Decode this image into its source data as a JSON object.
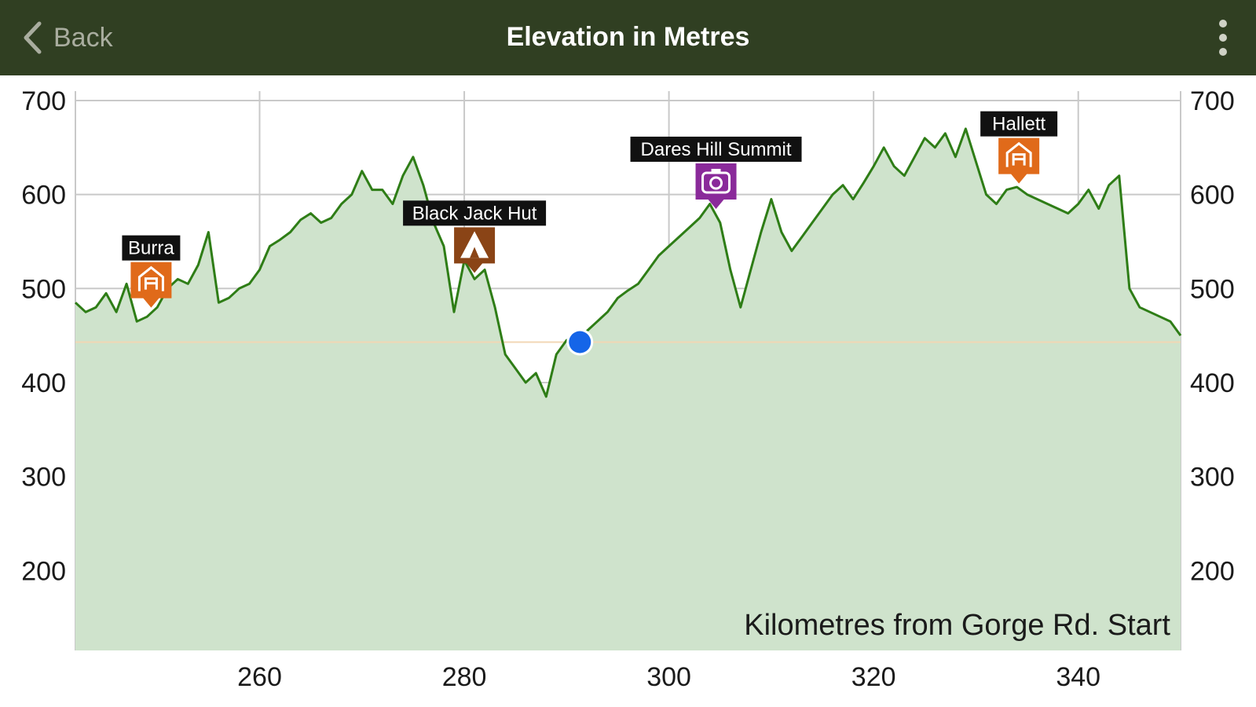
{
  "nav": {
    "back_label": "Back",
    "title": "Elevation in Metres",
    "menu_icon": "more-vertical-icon",
    "back_icon": "chevron-left-icon"
  },
  "colors": {
    "nav_bg": "#303f22",
    "line": "#2e7d16",
    "fill": "#cfe3cc",
    "grid": "#c9c9c9",
    "marker": "#1565e8",
    "town": "#e06a1a",
    "hut": "#8a4416",
    "viewpoint": "#8a2a9a",
    "label_bg": "#111111"
  },
  "chart_data": {
    "type": "area",
    "xlabel": "Kilometres from Gorge Rd. Start",
    "ylabel": "",
    "xlim": [
      242,
      350
    ],
    "ylim": [
      115,
      710
    ],
    "x_ticks": [
      260,
      280,
      300,
      320,
      340
    ],
    "y_ticks": [
      200,
      300,
      400,
      500,
      600,
      700
    ],
    "grid": true,
    "secondary_y_axis": true,
    "reference_line_y": 443,
    "current_position": {
      "x": 291.3,
      "y": 443
    },
    "series": [
      {
        "values_x": [
          242,
          243,
          244,
          245,
          246,
          247,
          248,
          249,
          250,
          251,
          252,
          253,
          254,
          255,
          256,
          257,
          258,
          259,
          260,
          261,
          262,
          263,
          264,
          265,
          266,
          267,
          268,
          269,
          270,
          271,
          272,
          273,
          274,
          275,
          276,
          277,
          278,
          279,
          280,
          281,
          282,
          283,
          284,
          285,
          286,
          287,
          288,
          289,
          290,
          291,
          292,
          293,
          294,
          295,
          296,
          297,
          298,
          299,
          300,
          301,
          302,
          303,
          304,
          305,
          306,
          307,
          308,
          309,
          310,
          311,
          312,
          313,
          314,
          315,
          316,
          317,
          318,
          319,
          320,
          321,
          322,
          323,
          324,
          325,
          326,
          327,
          328,
          329,
          330,
          331,
          332,
          333,
          334,
          335,
          336,
          337,
          338,
          339,
          340,
          341,
          342,
          343,
          344,
          345,
          346,
          347,
          348,
          349,
          350
        ],
        "values": [
          485,
          475,
          480,
          495,
          475,
          505,
          465,
          470,
          480,
          500,
          510,
          505,
          525,
          560,
          485,
          490,
          500,
          505,
          520,
          545,
          552,
          560,
          573,
          580,
          570,
          575,
          590,
          600,
          625,
          605,
          605,
          590,
          620,
          640,
          610,
          570,
          545,
          475,
          530,
          510,
          520,
          480,
          430,
          415,
          400,
          410,
          385,
          430,
          445,
          440,
          455,
          465,
          475,
          490,
          498,
          505,
          520,
          535,
          545,
          555,
          565,
          575,
          590,
          570,
          520,
          480,
          520,
          560,
          595,
          560,
          540,
          555,
          570,
          585,
          600,
          610,
          595,
          612,
          630,
          650,
          630,
          620,
          640,
          660,
          650,
          665,
          640,
          670,
          635,
          600,
          590,
          605,
          608,
          600,
          595,
          590,
          585,
          580,
          590,
          605,
          585,
          610,
          620,
          500,
          480,
          475,
          470,
          465,
          450
        ]
      }
    ],
    "poi": [
      {
        "label": "Burra",
        "x": 249.4,
        "y": 473,
        "icon": "town-icon",
        "color": "#e06a1a"
      },
      {
        "label": "Black Jack Hut",
        "x": 281.0,
        "y": 510,
        "icon": "tent-icon",
        "color": "#8a4416"
      },
      {
        "label": "Dares Hill Summit",
        "x": 304.6,
        "y": 578,
        "icon": "camera-icon",
        "color": "#8a2a9a"
      },
      {
        "label": "Hallett",
        "x": 334.2,
        "y": 605,
        "icon": "town-icon",
        "color": "#e06a1a"
      }
    ]
  }
}
